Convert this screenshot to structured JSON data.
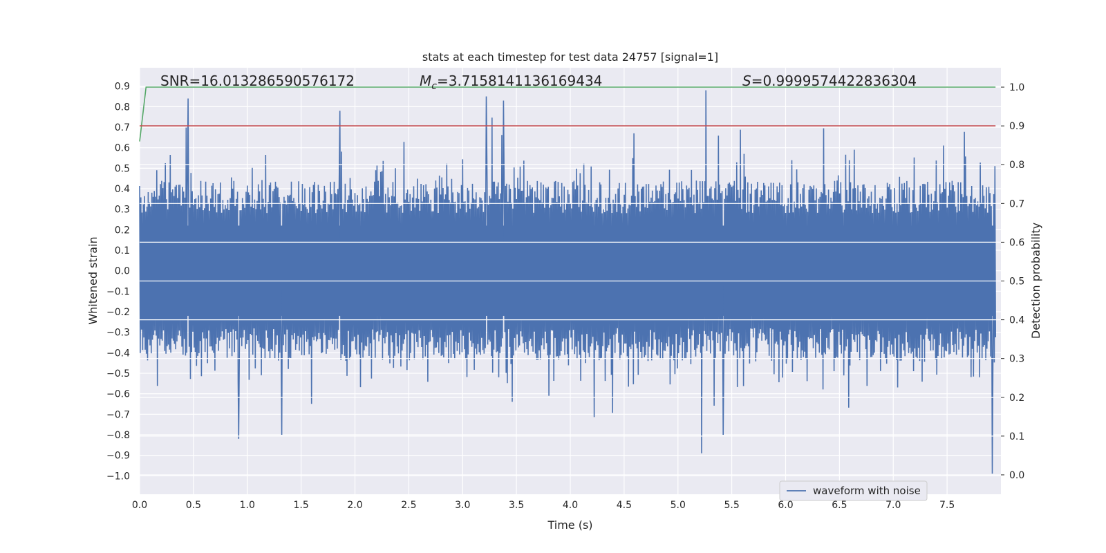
{
  "chart_data": {
    "type": "line",
    "title": "stats at each timestep for test data 24757 [signal=1]",
    "xlabel": "Time (s)",
    "ylabel": "Whitened strain",
    "ylabel_right": "Detection probability",
    "xlim": [
      0.0,
      8.0
    ],
    "ylim": [
      -1.09,
      0.99
    ],
    "ylim_right": [
      -0.05,
      1.05
    ],
    "x_ticks": [
      0.0,
      0.5,
      1.0,
      1.5,
      2.0,
      2.5,
      3.0,
      3.5,
      4.0,
      4.5,
      5.0,
      5.5,
      6.0,
      6.5,
      7.0,
      7.5
    ],
    "x_tick_labels": [
      "0.0",
      "0.5",
      "1.0",
      "1.5",
      "2.0",
      "2.5",
      "3.0",
      "3.5",
      "4.0",
      "4.5",
      "5.0",
      "5.5",
      "6.0",
      "6.5",
      "7.0",
      "7.5"
    ],
    "y_ticks": [
      0.9,
      0.8,
      0.7,
      0.6,
      0.5,
      0.4,
      0.3,
      0.2,
      0.1,
      0.0,
      -0.1,
      -0.2,
      -0.3,
      -0.4,
      -0.5,
      -0.6,
      -0.7,
      -0.8,
      -0.9,
      -1.0
    ],
    "y_tick_labels": [
      "0.9",
      "0.8",
      "0.7",
      "0.6",
      "0.5",
      "0.4",
      "0.3",
      "0.2",
      "0.1",
      "0.0",
      "−0.1",
      "−0.2",
      "−0.3",
      "−0.4",
      "−0.5",
      "−0.6",
      "−0.7",
      "−0.8",
      "−0.9",
      "−1.0"
    ],
    "y_ticks_right": [
      1.0,
      0.9,
      0.8,
      0.7,
      0.6,
      0.5,
      0.4,
      0.3,
      0.2,
      0.1,
      0.0
    ],
    "y_tick_labels_right": [
      "1.0",
      "0.9",
      "0.8",
      "0.7",
      "0.6",
      "0.5",
      "0.4",
      "0.3",
      "0.2",
      "0.1",
      "0.0"
    ],
    "annotations": {
      "snr": "SNR=16.013286590576172",
      "mc_symbol": "M",
      "mc_subscript": "c",
      "mc_value": "=3.7158141136169434",
      "s_symbol": "S",
      "s_value": "=0.9999574422836304"
    },
    "series": [
      {
        "name": "waveform with noise",
        "color": "#4c72b0",
        "axis": "left",
        "sample_count": 1400,
        "seed": 24757,
        "envelope": {
          "max": 0.88,
          "min": -1.0
        },
        "peaks": [
          {
            "x": 0.45,
            "y": 0.84
          },
          {
            "x": 0.92,
            "y": -0.82
          },
          {
            "x": 1.32,
            "y": -0.8
          },
          {
            "x": 1.86,
            "y": 0.78
          },
          {
            "x": 3.22,
            "y": 0.85
          },
          {
            "x": 3.38,
            "y": 0.83
          },
          {
            "x": 5.22,
            "y": -0.89
          },
          {
            "x": 5.26,
            "y": 0.88
          },
          {
            "x": 5.42,
            "y": -0.8
          },
          {
            "x": 7.92,
            "y": -0.99
          },
          {
            "x": 7.97,
            "y": -0.86
          }
        ]
      },
      {
        "name": "detection probability",
        "color": "#55a868",
        "axis": "right",
        "x": [
          0.0,
          0.06,
          0.1,
          7.95
        ],
        "values": [
          0.86,
          1.0,
          1.0,
          1.0
        ]
      },
      {
        "name": "threshold",
        "color": "#c44e52",
        "axis": "right",
        "x": [
          0.0,
          7.95
        ],
        "values": [
          0.9,
          0.9
        ]
      }
    ],
    "legend": {
      "position": "lower-right",
      "entries": [
        {
          "label": "waveform with noise",
          "color": "#4c72b0"
        }
      ]
    },
    "grid": true,
    "style": "seaborn-darkgrid"
  }
}
